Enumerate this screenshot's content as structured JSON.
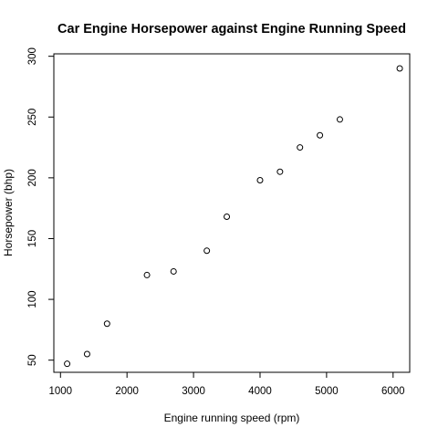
{
  "chart_data": {
    "type": "scatter",
    "title": "Car Engine Horsepower against Engine Running Speed",
    "xlabel": "Engine running speed (rpm)",
    "ylabel": "Horsepower (bhp)",
    "xlim": [
      900,
      6250
    ],
    "ylim": [
      40,
      302
    ],
    "x_ticks": [
      "1000",
      "2000",
      "3000",
      "4000",
      "5000",
      "6000"
    ],
    "y_ticks": [
      "50",
      "100",
      "150",
      "200",
      "250",
      "300"
    ],
    "grid": false,
    "legend": "none",
    "marker": "open-circle",
    "x": [
      1100,
      1400,
      1700,
      2300,
      2700,
      3200,
      3500,
      4000,
      4300,
      4600,
      4900,
      5200,
      6100
    ],
    "y": [
      47,
      55,
      80,
      120,
      123,
      140,
      168,
      198,
      205,
      225,
      235,
      248,
      290
    ]
  }
}
